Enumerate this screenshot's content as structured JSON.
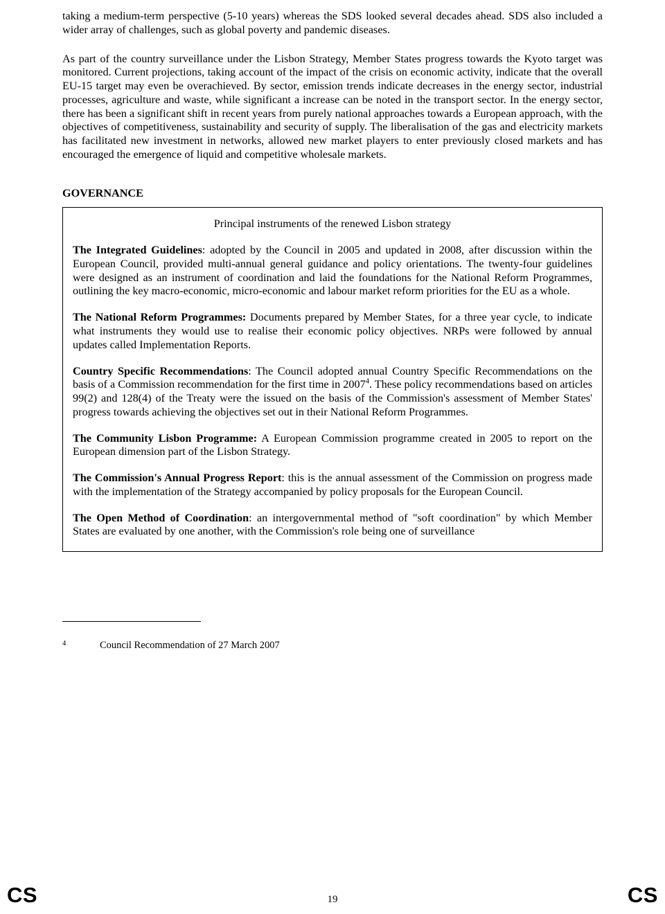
{
  "body": {
    "para1": "taking a medium-term perspective (5-10 years) whereas the SDS looked several decades ahead. SDS also included a wider array of challenges, such as global poverty and pandemic diseases.",
    "para2": "As part of the country surveillance under the Lisbon Strategy, Member States progress towards the Kyoto target was monitored. Current projections, taking account of the impact of the crisis on economic activity, indicate that the overall EU-15 target may even be overachieved. By sector, emission trends indicate decreases in the energy sector, industrial processes, agriculture and waste, while significant a increase can be noted in the transport sector. In the energy sector, there has been a significant shift in recent years from purely national approaches towards a European approach, with the objectives of competitiveness, sustainability and security of supply. The liberalisation of the gas and electricity markets has facilitated new investment in networks, allowed new market players to enter previously closed markets and has encouraged the emergence of liquid and competitive wholesale markets."
  },
  "section_heading": "GOVERNANCE",
  "box": {
    "title": "Principal instruments of the renewed Lisbon strategy",
    "p1_lead": "The Integrated Guidelines",
    "p1_rest": ": adopted by the Council in 2005 and updated in 2008, after discussion within the European Council, provided multi-annual general guidance and policy orientations. The twenty-four guidelines were designed as an instrument of coordination and laid the foundations for the National Reform Programmes, outlining the key macro-economic, micro-economic and labour market reform priorities for the EU as a whole.",
    "p2_lead": "The National Reform Programmes:",
    "p2_rest": " Documents prepared by Member States, for a three year cycle, to indicate what instruments they would use to realise their economic policy objectives. NRPs were followed by annual updates called Implementation Reports.",
    "p3_lead": "Country Specific Recommendations",
    "p3_rest_a": ": The Council adopted annual Country Specific Recommendations on the basis of a Commission recommendation for the first time in 2007",
    "p3_sup": "4",
    "p3_rest_b": ". These policy recommendations based on articles 99(2) and 128(4) of the Treaty were the issued on the basis of the Commission's assessment of Member States' progress towards achieving the objectives set out in their National Reform Programmes.",
    "p4_lead": "The Community Lisbon Programme:",
    "p4_rest": " A European Commission programme created in 2005 to report on the European dimension part of the Lisbon Strategy.",
    "p5_lead": "The Commission's Annual Progress Report",
    "p5_rest": ": this is the annual assessment of the Commission on progress made with the implementation of the Strategy accompanied by policy proposals for the European Council.",
    "p6_lead": "The Open Method of Coordination",
    "p6_rest": ": an intergovernmental method of \"soft coordination\" by which Member States are evaluated by one another, with the Commission's role being one of surveillance"
  },
  "footnote": {
    "marker": "4",
    "text": "Council Recommendation of 27 March 2007"
  },
  "footer": {
    "left": "CS",
    "page_number": "19",
    "right": "CS"
  }
}
